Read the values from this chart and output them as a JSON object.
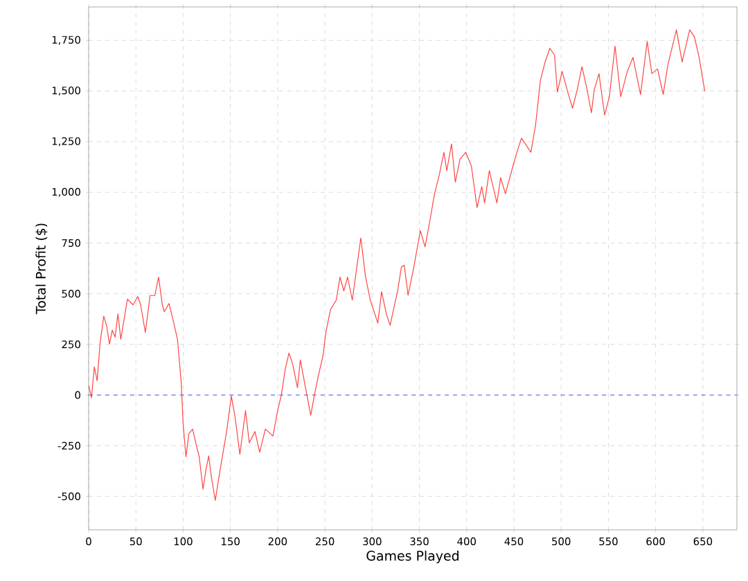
{
  "chart_data": {
    "type": "line",
    "xlabel": "Games Played",
    "ylabel": "Total Profit ($)",
    "xlim": [
      0,
      686
    ],
    "ylim": [
      -665,
      1915
    ],
    "xticks": [
      0,
      50,
      100,
      150,
      200,
      250,
      300,
      350,
      400,
      450,
      500,
      550,
      600,
      650
    ],
    "yticks": [
      -500,
      -250,
      0,
      250,
      500,
      750,
      {
        "value": 1000,
        "label": "1,000"
      },
      {
        "value": 1250,
        "label": "1,250"
      },
      {
        "value": 1500,
        "label": "1,500"
      },
      {
        "value": 1750,
        "label": "1,750"
      }
    ],
    "grid": true,
    "marker": "none",
    "line_style": "solid",
    "ref_lines": [
      {
        "axis": "y",
        "value": 0,
        "color": "#5555ff",
        "line_style": "dashed"
      }
    ],
    "series": [
      {
        "color": "#ff4444",
        "x": [
          0,
          3,
          6,
          9,
          12,
          16,
          19,
          22,
          25,
          28,
          31,
          34,
          41,
          47,
          52,
          55,
          60,
          65,
          70,
          74,
          78,
          80,
          85,
          89,
          94,
          98,
          100,
          103,
          106,
          110,
          114,
          117,
          121,
          124,
          127,
          130,
          134,
          137,
          139,
          146,
          151,
          155,
          160,
          166,
          170,
          176,
          181,
          187,
          195,
          200,
          204,
          208,
          212,
          216,
          221,
          224,
          229,
          235,
          239,
          243,
          248,
          251,
          256,
          262,
          266,
          270,
          274,
          279,
          283,
          288,
          293,
          298,
          306,
          310,
          315,
          319,
          327,
          331,
          334,
          338,
          344,
          351,
          356,
          361,
          366,
          371,
          376,
          379,
          384,
          388,
          393,
          399,
          405,
          411,
          416,
          419,
          424,
          432,
          436,
          441,
          449,
          454,
          458,
          468,
          473,
          478,
          483,
          488,
          493,
          496,
          501,
          507,
          512,
          517,
          522,
          527,
          532,
          535,
          540,
          546,
          551,
          557,
          563,
          570,
          576,
          584,
          591,
          596,
          602,
          608,
          613,
          622,
          628,
          636,
          641,
          646,
          652
        ],
        "values": [
          48,
          -14,
          139,
          70,
          252,
          389,
          343,
          252,
          320,
          286,
          400,
          275,
          473,
          445,
          486,
          445,
          309,
          491,
          491,
          582,
          445,
          411,
          452,
          377,
          275,
          59,
          -145,
          -305,
          -191,
          -168,
          -248,
          -305,
          -464,
          -373,
          -300,
          -407,
          -520,
          -430,
          -373,
          -180,
          -5,
          -111,
          -293,
          -77,
          -236,
          -180,
          -282,
          -168,
          -202,
          -77,
          2,
          127,
          207,
          150,
          36,
          173,
          48,
          -100,
          2,
          93,
          195,
          309,
          423,
          468,
          582,
          514,
          582,
          468,
          605,
          775,
          583,
          469,
          355,
          510,
          401,
          344,
          515,
          633,
          640,
          492,
          629,
          811,
          731,
          857,
          993,
          1085,
          1198,
          1107,
          1239,
          1050,
          1164,
          1198,
          1130,
          925,
          1028,
          948,
          1107,
          948,
          1073,
          993,
          1130,
          1210,
          1267,
          1198,
          1335,
          1552,
          1643,
          1711,
          1677,
          1495,
          1597,
          1495,
          1415,
          1506,
          1620,
          1517,
          1392,
          1506,
          1586,
          1381,
          1472,
          1722,
          1472,
          1597,
          1666,
          1483,
          1745,
          1586,
          1609,
          1483,
          1631,
          1802,
          1643,
          1802,
          1768,
          1666,
          1499
        ]
      }
    ]
  }
}
